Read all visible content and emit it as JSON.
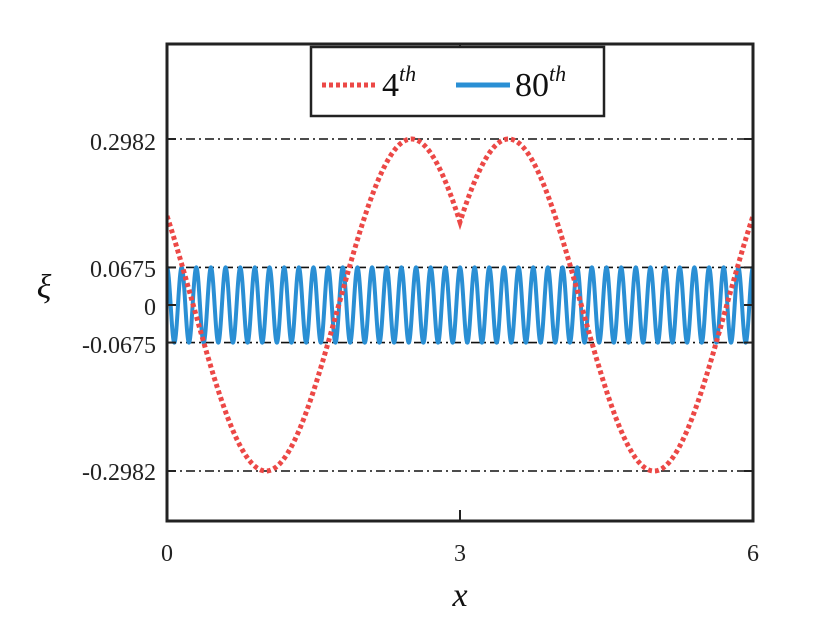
{
  "chart_data": {
    "type": "line",
    "xlabel": "x",
    "ylabel": "ξ",
    "xlim": [
      0,
      6
    ],
    "ylim": [
      -0.42,
      0.48
    ],
    "xticks": [
      0,
      3,
      6
    ],
    "xtick_labels": [
      "0",
      "3",
      "6"
    ],
    "yticks": [
      0.2982,
      0.0675,
      0,
      -0.0675,
      -0.2982
    ],
    "ytick_labels": [
      "0.2982",
      "0.0675",
      "0",
      "-0.0675",
      "-0.2982"
    ],
    "reference_lines": [
      0.2982,
      0.0675,
      -0.0675,
      -0.2982
    ],
    "legend_position": "top",
    "series": [
      {
        "name_base": "4",
        "name_sup": "th",
        "color": "#ec4846",
        "style": "dotted",
        "amplitude": 0.2982,
        "mode": 4
      },
      {
        "name_base": "80",
        "name_sup": "th",
        "color": "#2a8fd4",
        "style": "solid",
        "amplitude": 0.0675,
        "mode": 80
      }
    ]
  }
}
